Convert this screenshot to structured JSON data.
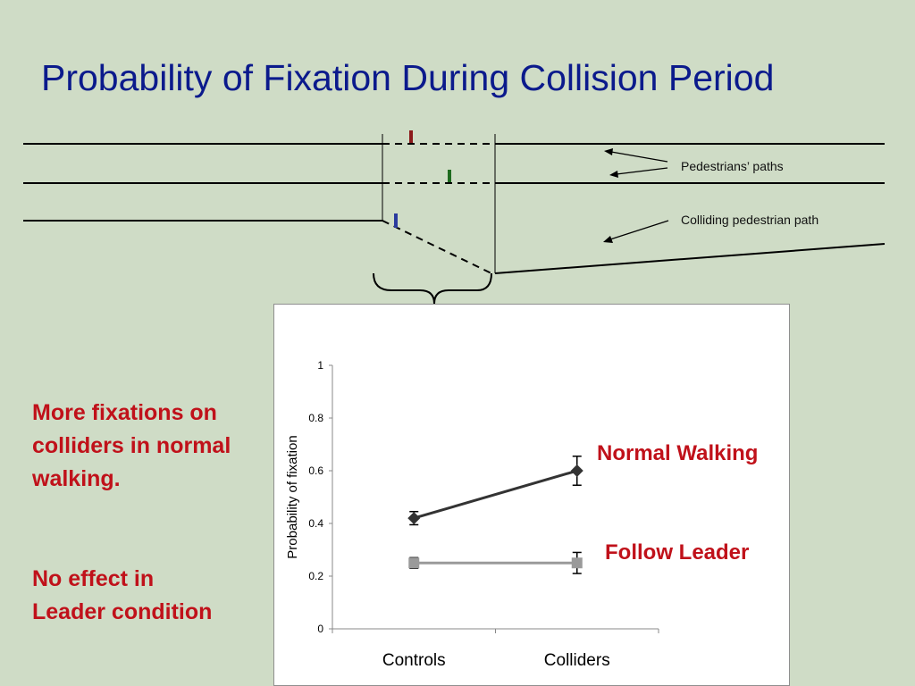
{
  "slide": {
    "title": "Probability of Fixation During Collision Period"
  },
  "diagram": {
    "pedestrians_label": "Pedestrians’ paths",
    "colliding_label": "Colliding pedestrian path",
    "marker_colors": [
      "#8b1a1a",
      "#1f6b1f",
      "#2a3a9e"
    ]
  },
  "notes": [
    "More fixations on colliders in normal walking.",
    "No effect in Leader condition"
  ],
  "callouts": {
    "normal_walking": "Normal Walking",
    "follow_leader": "Follow Leader"
  },
  "chart_data": {
    "type": "line",
    "title": "",
    "xlabel": "",
    "ylabel": "Probability of fixation",
    "categories": [
      "Controls",
      "Colliders"
    ],
    "ylim": [
      0,
      1
    ],
    "yticks": [
      0,
      0.2,
      0.4,
      0.6,
      0.8,
      1
    ],
    "ytick_labels": [
      "0",
      "0.2",
      "0.4",
      "0.6",
      "0.8",
      "1"
    ],
    "grid": false,
    "series": [
      {
        "values": [
          0.42,
          0.6
        ],
        "errors": [
          0.025,
          0.055
        ],
        "marker": "diamond",
        "color": "#333333"
      },
      {
        "values": [
          0.25,
          0.25
        ],
        "errors": [
          0.02,
          0.04
        ],
        "marker": "square",
        "color": "#9a9a9a"
      }
    ]
  }
}
